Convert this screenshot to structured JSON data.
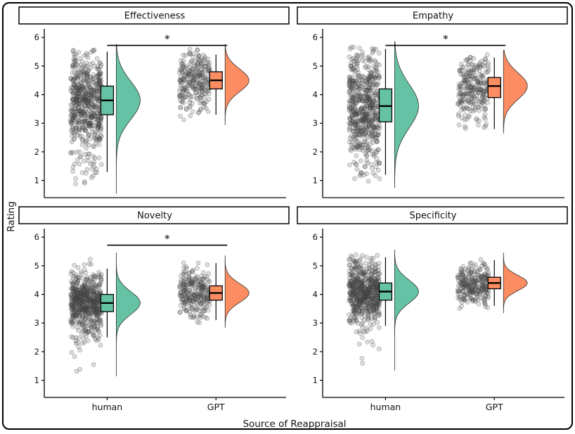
{
  "figure": {
    "ylabel": "Rating",
    "xlabel": "Source of Reappraisal",
    "group_labels": [
      "human",
      "GPT"
    ],
    "colors": {
      "human": "#66C2A5",
      "GPT": "#FC8D62",
      "points": "#4d4d4d",
      "axis": "#000000"
    }
  },
  "chart_data": [
    {
      "type": "raincloud",
      "panel": "Effectiveness",
      "ylim": [
        0.4,
        6.3
      ],
      "yticks": [
        1,
        2,
        3,
        4,
        5,
        6
      ],
      "significance": {
        "label": "*",
        "y": 5.72
      },
      "groups": [
        {
          "name": "human",
          "color": "#66C2A5",
          "n_points": 600,
          "box": {
            "median": 3.8,
            "q1": 3.3,
            "q3": 4.3,
            "whisker_low": 1.3,
            "whisker_high": 5.5
          },
          "points_min": 0.7,
          "points_max": 5.6
        },
        {
          "name": "GPT",
          "color": "#FC8D62",
          "n_points": 260,
          "box": {
            "median": 4.5,
            "q1": 4.2,
            "q3": 4.8,
            "whisker_low": 3.3,
            "whisker_high": 5.4
          },
          "points_min": 3.1,
          "points_max": 5.6
        }
      ]
    },
    {
      "type": "raincloud",
      "panel": "Empathy",
      "ylim": [
        0.4,
        6.3
      ],
      "yticks": [
        1,
        2,
        3,
        4,
        5,
        6
      ],
      "significance": {
        "label": "*",
        "y": 5.72
      },
      "groups": [
        {
          "name": "human",
          "color": "#66C2A5",
          "n_points": 600,
          "box": {
            "median": 3.6,
            "q1": 3.05,
            "q3": 4.2,
            "whisker_low": 1.2,
            "whisker_high": 5.6
          },
          "points_min": 0.9,
          "points_max": 5.7
        },
        {
          "name": "GPT",
          "color": "#FC8D62",
          "n_points": 260,
          "box": {
            "median": 4.3,
            "q1": 3.9,
            "q3": 4.6,
            "whisker_low": 2.8,
            "whisker_high": 5.3
          },
          "points_min": 2.8,
          "points_max": 5.4
        }
      ]
    },
    {
      "type": "raincloud",
      "panel": "Novelty",
      "ylim": [
        0.4,
        6.3
      ],
      "yticks": [
        1,
        2,
        3,
        4,
        5,
        6
      ],
      "significance": {
        "label": "*",
        "y": 5.72
      },
      "groups": [
        {
          "name": "human",
          "color": "#66C2A5",
          "n_points": 600,
          "box": {
            "median": 3.7,
            "q1": 3.4,
            "q3": 4.0,
            "whisker_low": 2.5,
            "whisker_high": 4.9
          },
          "points_min": 1.3,
          "points_max": 5.3
        },
        {
          "name": "GPT",
          "color": "#FC8D62",
          "n_points": 260,
          "box": {
            "median": 4.05,
            "q1": 3.8,
            "q3": 4.3,
            "whisker_low": 3.1,
            "whisker_high": 5.1
          },
          "points_min": 3.0,
          "points_max": 5.2
        }
      ]
    },
    {
      "type": "raincloud",
      "panel": "Specificity",
      "ylim": [
        0.4,
        6.3
      ],
      "yticks": [
        1,
        2,
        3,
        4,
        5,
        6
      ],
      "significance": null,
      "groups": [
        {
          "name": "human",
          "color": "#66C2A5",
          "n_points": 600,
          "box": {
            "median": 4.1,
            "q1": 3.8,
            "q3": 4.4,
            "whisker_low": 2.9,
            "whisker_high": 5.3
          },
          "points_min": 1.5,
          "points_max": 5.4
        },
        {
          "name": "GPT",
          "color": "#FC8D62",
          "n_points": 260,
          "box": {
            "median": 4.4,
            "q1": 4.2,
            "q3": 4.6,
            "whisker_low": 3.6,
            "whisker_high": 5.2
          },
          "points_min": 3.5,
          "points_max": 5.3
        }
      ]
    }
  ]
}
